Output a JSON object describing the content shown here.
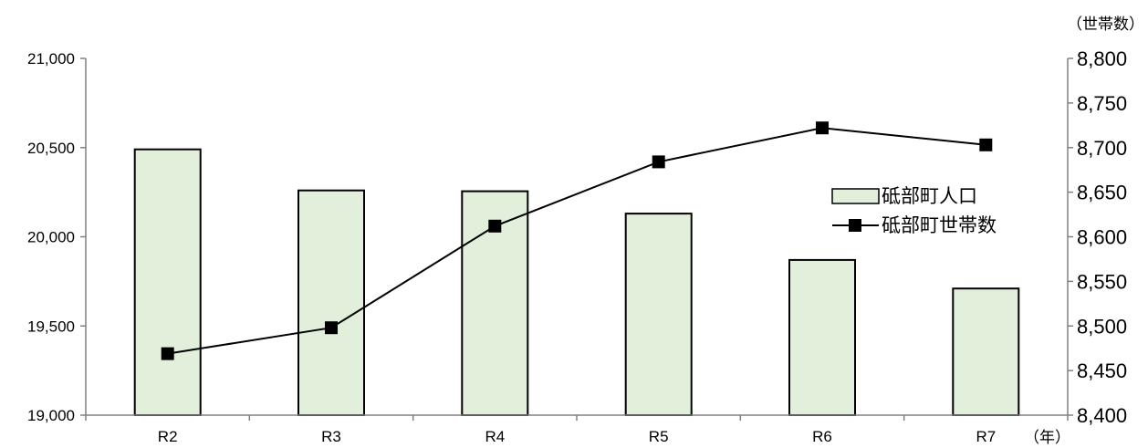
{
  "chart_data": {
    "type": "bar+line",
    "categories": [
      "R2",
      "R3",
      "R4",
      "R5",
      "R6",
      "R7"
    ],
    "x_unit_label": "（年）",
    "series": [
      {
        "name": "砥部町人口",
        "type": "bar",
        "axis": "left",
        "values": [
          20490,
          20260,
          20255,
          20130,
          19870,
          19710
        ]
      },
      {
        "name": "砥部町世帯数",
        "type": "line",
        "axis": "right",
        "values": [
          8469,
          8498,
          8612,
          8684,
          8722,
          8703
        ]
      }
    ],
    "left_axis": {
      "ylim": [
        19000,
        21000
      ],
      "ticks": [
        "19,000",
        "19,500",
        "20,000",
        "20,500",
        "21,000"
      ],
      "tick_values": [
        19000,
        19500,
        20000,
        20500,
        21000
      ]
    },
    "right_axis": {
      "unit_label": "（世帯数）",
      "ylim": [
        8400,
        8800
      ],
      "ticks": [
        "8,400",
        "8,450",
        "8,500",
        "8,550",
        "8,600",
        "8,650",
        "8,700",
        "8,750",
        "8,800"
      ],
      "tick_values": [
        8400,
        8450,
        8500,
        8550,
        8600,
        8650,
        8700,
        8750,
        8800
      ]
    },
    "legend_position": "right",
    "grid": false,
    "colors": {
      "bar_fill": "#e2efda",
      "bar_stroke": "#000000",
      "line": "#000000",
      "marker": "#000000"
    }
  }
}
